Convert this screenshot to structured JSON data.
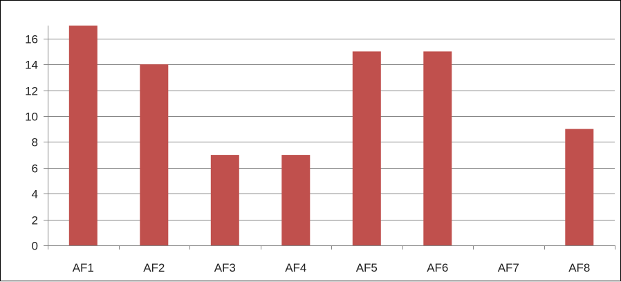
{
  "chart_data": {
    "type": "bar",
    "title": "",
    "xlabel": "",
    "ylabel": "",
    "categories": [
      "AF1",
      "AF2",
      "AF3",
      "AF4",
      "AF5",
      "AF6",
      "AF7",
      "AF8"
    ],
    "values": [
      17,
      14,
      7,
      7,
      15,
      15,
      0,
      9
    ],
    "ylim": [
      0,
      17
    ],
    "yticks": [
      "0",
      "2",
      "4",
      "6",
      "8",
      "10",
      "12",
      "14",
      "16"
    ],
    "grid": true,
    "legend": "none",
    "colors": {
      "bar": "#C0504D",
      "grid": "#868686",
      "axis": "#868686",
      "text": "#222222"
    }
  }
}
